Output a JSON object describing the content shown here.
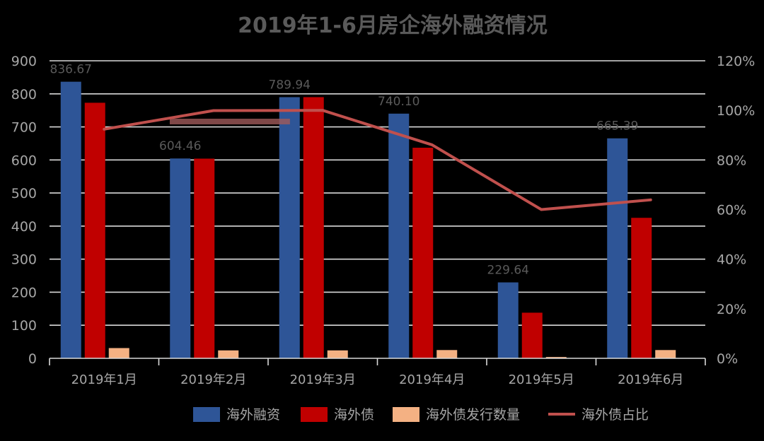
{
  "chart_data": {
    "type": "bar",
    "title": "2019年1-6月房企海外融资情况",
    "categories": [
      "2019年1月",
      "2019年2月",
      "2019年3月",
      "2019年4月",
      "2019年5月",
      "2019年6月"
    ],
    "series": [
      {
        "name": "海外融资",
        "type": "bar",
        "axis": "left",
        "color": "#2e5597",
        "values": [
          836.67,
          604.46,
          789.94,
          740.1,
          229.64,
          665.39
        ]
      },
      {
        "name": "海外债",
        "type": "bar",
        "axis": "left",
        "color": "#c00000",
        "values": [
          773,
          604,
          790,
          637,
          138,
          425
        ]
      },
      {
        "name": "海外债发行数量",
        "type": "bar",
        "axis": "left",
        "color": "#f4b183",
        "values": [
          31,
          24,
          24,
          25,
          4,
          25
        ]
      },
      {
        "name": "海外债占比",
        "type": "line",
        "axis": "right",
        "color": "#c0504d",
        "values": [
          0.924,
          0.999,
          1.0,
          0.861,
          0.6,
          0.639
        ]
      }
    ],
    "data_labels": [
      "836.67",
      "604.46",
      "789.94",
      "740.10",
      "229.64",
      "665.39"
    ],
    "y_left": {
      "min": 0,
      "max": 900,
      "step": 100,
      "ticks": [
        "0",
        "100",
        "200",
        "300",
        "400",
        "500",
        "600",
        "700",
        "800",
        "900"
      ]
    },
    "y_right": {
      "min": 0,
      "max": 1.2,
      "step": 0.2,
      "ticks": [
        "0%",
        "20%",
        "40%",
        "60%",
        "80%",
        "100%",
        "120%"
      ]
    },
    "grid": true,
    "legend_position": "bottom"
  }
}
